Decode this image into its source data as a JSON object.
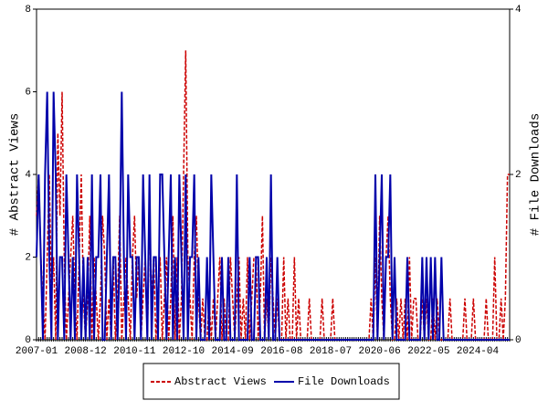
{
  "chart_data": {
    "type": "line",
    "y_label": "# Abstract Views",
    "y2_label": "# File Downloads",
    "ylim": [
      0,
      8
    ],
    "yticks": [
      0,
      2,
      4,
      6,
      8
    ],
    "y2lim": [
      0,
      4
    ],
    "y2ticks": [
      0,
      2,
      4
    ],
    "legend": "bottom",
    "categories": [
      "2007-01",
      null,
      null,
      null,
      null,
      null,
      null,
      null,
      null,
      null,
      null,
      null,
      null,
      null,
      null,
      null,
      null,
      null,
      null,
      null,
      null,
      null,
      null,
      "2008-12",
      null,
      null,
      null,
      null,
      null,
      null,
      null,
      null,
      null,
      null,
      null,
      null,
      null,
      null,
      null,
      null,
      null,
      null,
      null,
      null,
      null,
      null,
      "2010-11",
      null,
      null,
      null,
      null,
      null,
      null,
      null,
      null,
      null,
      null,
      null,
      null,
      null,
      null,
      null,
      null,
      null,
      null,
      null,
      null,
      null,
      null,
      "2012-10",
      null,
      null,
      null,
      null,
      null,
      null,
      null,
      null,
      null,
      null,
      null,
      null,
      null,
      null,
      null,
      null,
      null,
      null,
      null,
      null,
      null,
      null,
      "2014-09",
      null,
      null,
      null,
      null,
      null,
      null,
      null,
      null,
      null,
      null,
      null,
      null,
      null,
      null,
      null,
      null,
      null,
      null,
      null,
      null,
      null,
      null,
      "2016-08",
      null,
      null,
      null,
      null,
      null,
      null,
      null,
      null,
      null,
      null,
      null,
      null,
      null,
      null,
      null,
      null,
      null,
      null,
      null,
      null,
      null,
      null,
      "2018-07",
      null,
      null,
      null,
      null,
      null,
      null,
      null,
      null,
      null,
      null,
      null,
      null,
      null,
      null,
      null,
      null,
      null,
      null,
      null,
      null,
      null,
      null,
      "2020-06",
      null,
      null,
      null,
      null,
      null,
      null,
      null,
      null,
      null,
      null,
      null,
      null,
      null,
      null,
      null,
      null,
      null,
      null,
      null,
      null,
      null,
      null,
      "2022-05",
      null,
      null,
      null,
      null,
      null,
      null,
      null,
      null,
      null,
      null,
      null,
      null,
      null,
      null,
      null,
      null,
      null,
      null,
      null,
      null,
      null,
      null,
      "2024-04",
      null,
      null,
      null,
      null,
      null,
      null,
      null,
      null,
      null,
      null,
      null,
      null,
      null,
      null,
      null
    ],
    "series": [
      {
        "name": "Abstract Views",
        "color": "#cc0000",
        "dash": true,
        "values": [
          3,
          4,
          2,
          1,
          0,
          2,
          4,
          1,
          2,
          0,
          5,
          3,
          6,
          2,
          0,
          1,
          2,
          3,
          1,
          0,
          2,
          4,
          1,
          0,
          1,
          3,
          0,
          2,
          1,
          0,
          1,
          3,
          2,
          0,
          1,
          0,
          2,
          0,
          1,
          3,
          0,
          1,
          2,
          1,
          0,
          2,
          3,
          1,
          2,
          0,
          1,
          2,
          0,
          3,
          1,
          2,
          0,
          1,
          2,
          0,
          1,
          2,
          0,
          1,
          3,
          0,
          2,
          0,
          1,
          4,
          7,
          2,
          1,
          0,
          2,
          3,
          1,
          0,
          1,
          0,
          0,
          1,
          0,
          1,
          0,
          1,
          2,
          0,
          1,
          0,
          0,
          2,
          1,
          0,
          1,
          2,
          0,
          1,
          0,
          2,
          0,
          1,
          2,
          2,
          0,
          1,
          3,
          0,
          1,
          0,
          2,
          1,
          0,
          1,
          0,
          0,
          2,
          0,
          1,
          0,
          0,
          2,
          0,
          1,
          0,
          0,
          0,
          0,
          1,
          0,
          0,
          0,
          0,
          0,
          1,
          0,
          0,
          0,
          0,
          1,
          0,
          0,
          0,
          0,
          0,
          0,
          0,
          0,
          0,
          0,
          0,
          0,
          0,
          0,
          0,
          0,
          0,
          1,
          0,
          2,
          0,
          3,
          1,
          0,
          2,
          3,
          1,
          0,
          0,
          1,
          0,
          1,
          0,
          1,
          0,
          2,
          0,
          1,
          1,
          0,
          0,
          1,
          0,
          1,
          0,
          0,
          1,
          0,
          1,
          0,
          0,
          0,
          0,
          0,
          1,
          0,
          0,
          0,
          0,
          0,
          0,
          1,
          0,
          0,
          0,
          1,
          0,
          0,
          0,
          0,
          0,
          1,
          0,
          0,
          0,
          2,
          0,
          0,
          1,
          0,
          1,
          4,
          4
        ]
      },
      {
        "name": "File Downloads",
        "color": "#0000aa",
        "axis": "y2",
        "values": [
          1,
          2,
          1,
          0,
          2,
          3,
          1,
          0,
          3,
          2,
          0,
          1,
          1,
          0,
          2,
          1,
          0,
          1,
          0,
          2,
          1,
          0,
          1,
          0,
          1,
          0,
          2,
          0,
          1,
          1,
          2,
          0,
          0,
          1,
          2,
          0,
          1,
          1,
          0,
          1,
          3,
          1,
          0,
          2,
          1,
          1,
          0,
          1,
          1,
          0,
          2,
          1,
          0,
          2,
          0,
          1,
          1,
          0,
          2,
          2,
          1,
          0,
          1,
          2,
          0,
          1,
          0,
          2,
          1,
          0,
          2,
          0,
          1,
          1,
          2,
          0,
          1,
          0,
          0,
          0,
          1,
          0,
          2,
          1,
          0,
          0,
          0,
          1,
          0,
          0,
          1,
          0,
          0,
          0,
          2,
          0,
          0,
          0,
          0,
          0,
          1,
          0,
          0,
          1,
          1,
          0,
          0,
          0,
          1,
          0,
          2,
          0,
          0,
          1,
          0,
          0,
          0,
          0,
          0,
          0,
          0,
          0,
          0,
          0,
          0,
          0,
          0,
          0,
          0,
          0,
          0,
          0,
          0,
          0,
          0,
          0,
          0,
          0,
          0,
          0,
          0,
          0,
          0,
          0,
          0,
          0,
          0,
          0,
          0,
          0,
          0,
          0,
          0,
          0,
          0,
          0,
          0,
          0,
          0,
          2,
          0,
          1,
          2,
          0,
          1,
          1,
          2,
          0,
          1,
          0,
          0,
          0,
          0,
          0,
          1,
          0,
          0,
          0,
          0,
          0,
          0,
          1,
          0,
          1,
          0,
          1,
          0,
          1,
          0,
          0,
          1,
          0,
          0,
          0,
          0,
          0,
          0,
          0,
          0,
          0,
          0,
          0,
          0,
          0,
          0,
          0,
          0,
          0,
          0,
          0,
          0,
          0,
          0,
          0,
          0,
          0,
          0,
          0,
          0,
          0,
          0,
          0,
          0
        ]
      }
    ]
  }
}
